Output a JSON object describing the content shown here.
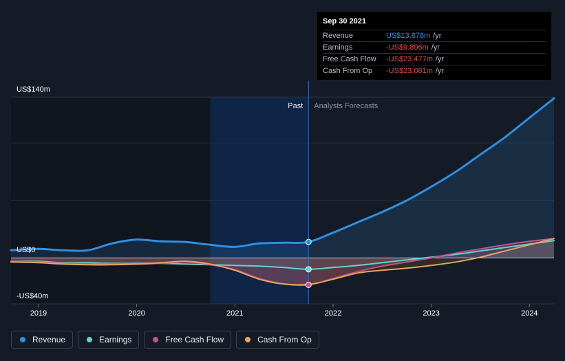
{
  "tooltip": {
    "date": "Sep 30 2021",
    "rows": [
      {
        "label": "Revenue",
        "value": "US$13.878m",
        "unit": "/yr"
      },
      {
        "label": "Earnings",
        "value": "-US$9.896m",
        "unit": "/yr"
      },
      {
        "label": "Free Cash Flow",
        "value": "-US$23.477m",
        "unit": "/yr"
      },
      {
        "label": "Cash From Op",
        "value": "-US$23.081m",
        "unit": "/yr"
      }
    ]
  },
  "legend": [
    {
      "label": "Revenue",
      "color": "#2f8fe0"
    },
    {
      "label": "Earnings",
      "color": "#5fd6c8"
    },
    {
      "label": "Free Cash Flow",
      "color": "#c8508a"
    },
    {
      "label": "Cash From Op",
      "color": "#e8a45a"
    }
  ],
  "chart_data": {
    "type": "line",
    "past_label": "Past",
    "forecast_label": "Analysts Forecasts",
    "y_axis_labels": [
      "US$140m",
      "US$0",
      "-US$40m"
    ],
    "ylim": [
      -40,
      140
    ],
    "xlim": [
      2018.72,
      2024.25
    ],
    "x_ticks": [
      2019,
      2020,
      2021,
      2022,
      2023,
      2024
    ],
    "x_tick_labels": [
      "2019",
      "2020",
      "2021",
      "2022",
      "2023",
      "2024"
    ],
    "divider_x": 2021.75,
    "highlight_start": 2020.75,
    "grid": true,
    "series": [
      {
        "name": "Revenue",
        "color": "#2f8fe0",
        "values": [
          [
            2018.72,
            6.6
          ],
          [
            2019.0,
            7.8
          ],
          [
            2019.25,
            6.6
          ],
          [
            2019.5,
            6.6
          ],
          [
            2019.75,
            12.6
          ],
          [
            2020.0,
            15.9
          ],
          [
            2020.25,
            14.4
          ],
          [
            2020.5,
            13.8
          ],
          [
            2020.75,
            11.4
          ],
          [
            2021.0,
            9.6
          ],
          [
            2021.25,
            12.6
          ],
          [
            2021.5,
            13.2
          ],
          [
            2021.75,
            13.9
          ],
          [
            2022.0,
            22.0
          ],
          [
            2022.25,
            31.0
          ],
          [
            2022.5,
            40.0
          ],
          [
            2022.75,
            50.0
          ],
          [
            2023.0,
            62.0
          ],
          [
            2023.25,
            75.0
          ],
          [
            2023.5,
            90.0
          ],
          [
            2023.75,
            105.0
          ],
          [
            2024.0,
            122.0
          ],
          [
            2024.25,
            139.0
          ]
        ]
      },
      {
        "name": "Earnings",
        "color": "#5fd6c8",
        "values": [
          [
            2018.72,
            -3.0
          ],
          [
            2019.0,
            -3.0
          ],
          [
            2019.25,
            -4.2
          ],
          [
            2019.5,
            -4.2
          ],
          [
            2019.75,
            -4.8
          ],
          [
            2020.0,
            -4.8
          ],
          [
            2020.25,
            -4.8
          ],
          [
            2020.5,
            -5.4
          ],
          [
            2020.75,
            -6.0
          ],
          [
            2021.0,
            -6.6
          ],
          [
            2021.25,
            -7.2
          ],
          [
            2021.5,
            -8.4
          ],
          [
            2021.75,
            -9.9
          ],
          [
            2022.0,
            -8.4
          ],
          [
            2022.25,
            -6.6
          ],
          [
            2022.5,
            -4.2
          ],
          [
            2022.75,
            -1.8
          ],
          [
            2023.0,
            0.6
          ],
          [
            2023.25,
            3.0
          ],
          [
            2023.5,
            6.0
          ],
          [
            2023.75,
            9.0
          ],
          [
            2024.0,
            12.0
          ],
          [
            2024.25,
            15.0
          ]
        ]
      },
      {
        "name": "Free Cash Flow",
        "color": "#c8508a",
        "values": [
          [
            2018.72,
            -3.0
          ],
          [
            2019.0,
            -3.6
          ],
          [
            2019.25,
            -4.8
          ],
          [
            2019.5,
            -5.4
          ],
          [
            2019.75,
            -5.4
          ],
          [
            2020.0,
            -5.4
          ],
          [
            2020.25,
            -4.8
          ],
          [
            2020.5,
            -3.6
          ],
          [
            2020.75,
            -6.0
          ],
          [
            2021.0,
            -10.2
          ],
          [
            2021.25,
            -18.0
          ],
          [
            2021.5,
            -22.8
          ],
          [
            2021.75,
            -23.5
          ],
          [
            2022.0,
            -18.0
          ],
          [
            2022.25,
            -12.0
          ],
          [
            2022.5,
            -7.2
          ],
          [
            2022.75,
            -3.6
          ],
          [
            2023.0,
            0.0
          ],
          [
            2023.25,
            4.2
          ],
          [
            2023.5,
            7.8
          ],
          [
            2023.75,
            11.4
          ],
          [
            2024.0,
            14.4
          ],
          [
            2024.25,
            16.8
          ]
        ]
      },
      {
        "name": "Cash From Op",
        "color": "#e8a45a",
        "values": [
          [
            2018.72,
            -3.6
          ],
          [
            2019.0,
            -4.2
          ],
          [
            2019.25,
            -5.4
          ],
          [
            2019.5,
            -6.0
          ],
          [
            2019.75,
            -6.0
          ],
          [
            2020.0,
            -5.4
          ],
          [
            2020.25,
            -4.2
          ],
          [
            2020.5,
            -3.0
          ],
          [
            2020.75,
            -5.4
          ],
          [
            2021.0,
            -10.8
          ],
          [
            2021.25,
            -18.6
          ],
          [
            2021.5,
            -22.8
          ],
          [
            2021.75,
            -23.1
          ],
          [
            2022.0,
            -18.6
          ],
          [
            2022.25,
            -13.2
          ],
          [
            2022.5,
            -10.8
          ],
          [
            2022.75,
            -9.0
          ],
          [
            2023.0,
            -6.6
          ],
          [
            2023.25,
            -3.6
          ],
          [
            2023.5,
            0.6
          ],
          [
            2023.75,
            6.0
          ],
          [
            2024.0,
            11.4
          ],
          [
            2024.25,
            16.8
          ]
        ]
      }
    ]
  }
}
